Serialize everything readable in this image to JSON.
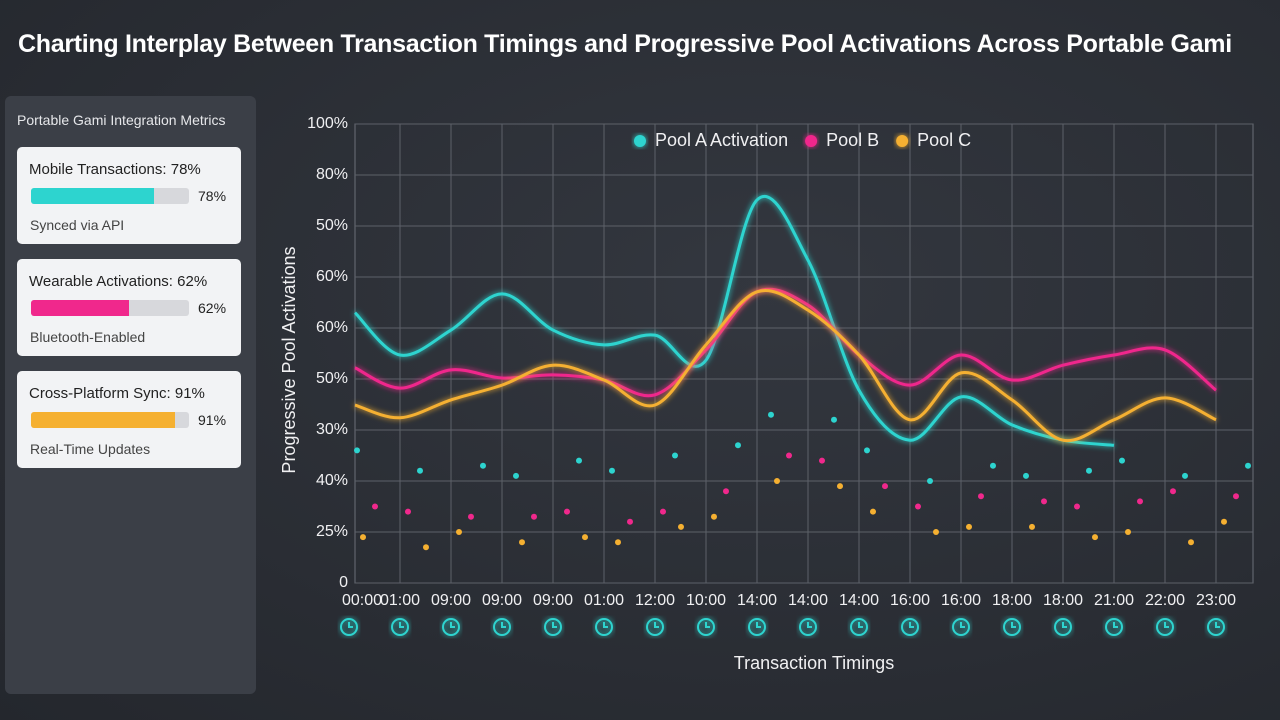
{
  "header": {
    "title": "Charting Interplay Between Transaction Timings and Progressive Pool Activations Across Portable Gami"
  },
  "panel": {
    "title": "Portable Gami Integration Metrics",
    "metrics": [
      {
        "label": "Mobile Transactions: 78%",
        "value": 78,
        "value_label": "78%",
        "note": "Synced via API",
        "color": "#2dd4cf"
      },
      {
        "label": "Wearable Activations: 62%",
        "value": 62,
        "value_label": "62%",
        "note": "Bluetooth-Enabled",
        "color": "#f0288c"
      },
      {
        "label": "Cross-Platform Sync: 91%",
        "value": 91,
        "value_label": "91%",
        "note": "Real-Time Updates",
        "color": "#f5b031"
      }
    ]
  },
  "chart_data": {
    "type": "line",
    "x_label": "Transaction Timings",
    "y_label": "Progressive Pool Activations",
    "categories": [
      "00:00",
      "01:00",
      "09:00",
      "09:00",
      "09:00",
      "01:00",
      "12:00",
      "10:00",
      "14:00",
      "14:00",
      "14:00",
      "16:00",
      "16:00",
      "18:00",
      "18:00",
      "21:00",
      "22:00",
      "23:00"
    ],
    "ylim": [
      0,
      90
    ],
    "yticks": [
      0,
      {
        "value": 10,
        "label": "25%"
      },
      {
        "value": 20,
        "label": "40%"
      },
      {
        "value": 30,
        "label": "30%"
      },
      {
        "value": 40,
        "label": "50%"
      },
      {
        "value": 50,
        "label": "60%"
      },
      {
        "value": 60,
        "label": "60%"
      },
      {
        "value": 70,
        "label": "50%"
      },
      {
        "value": 80,
        "label": "80%"
      },
      {
        "value": 90,
        "label": "100%"
      }
    ],
    "grid": true,
    "series": [
      {
        "name": "Pool A Activation",
        "color": "#2dd4cf",
        "values": [
          53,
          44.7,
          49.6,
          56.7,
          49.6,
          46.7,
          48.6,
          43.7,
          75.1,
          63.3,
          37.8,
          28,
          36.5,
          31,
          28,
          27,
          null,
          null
        ],
        "points": [
          26,
          22,
          23,
          21,
          24,
          22,
          25,
          27,
          33,
          32,
          26,
          20,
          23,
          21,
          22,
          24,
          21,
          23
        ]
      },
      {
        "name": "Pool B",
        "color": "#f0288c",
        "values": [
          42.2,
          38.2,
          41.8,
          40.2,
          40.8,
          39.8,
          36.9,
          45.7,
          57.1,
          54.5,
          44.7,
          38.8,
          44.7,
          39.8,
          42.7,
          44.7,
          45.7,
          37.8
        ],
        "points": [
          15,
          14,
          13,
          13,
          14,
          12,
          14,
          18,
          25,
          24,
          19,
          15,
          17,
          16,
          15,
          16,
          18,
          17
        ]
      },
      {
        "name": "Pool C",
        "color": "#f5b031",
        "values": [
          34.9,
          32.4,
          35.9,
          38.8,
          42.7,
          39.8,
          34.9,
          46.7,
          57.1,
          53.5,
          44.7,
          32,
          41.2,
          35.9,
          28,
          32,
          36.3,
          32
        ],
        "points": [
          9,
          7,
          10,
          8,
          9,
          8,
          11,
          13,
          20,
          19,
          14,
          10,
          11,
          11,
          9,
          10,
          8,
          12
        ]
      }
    ]
  }
}
